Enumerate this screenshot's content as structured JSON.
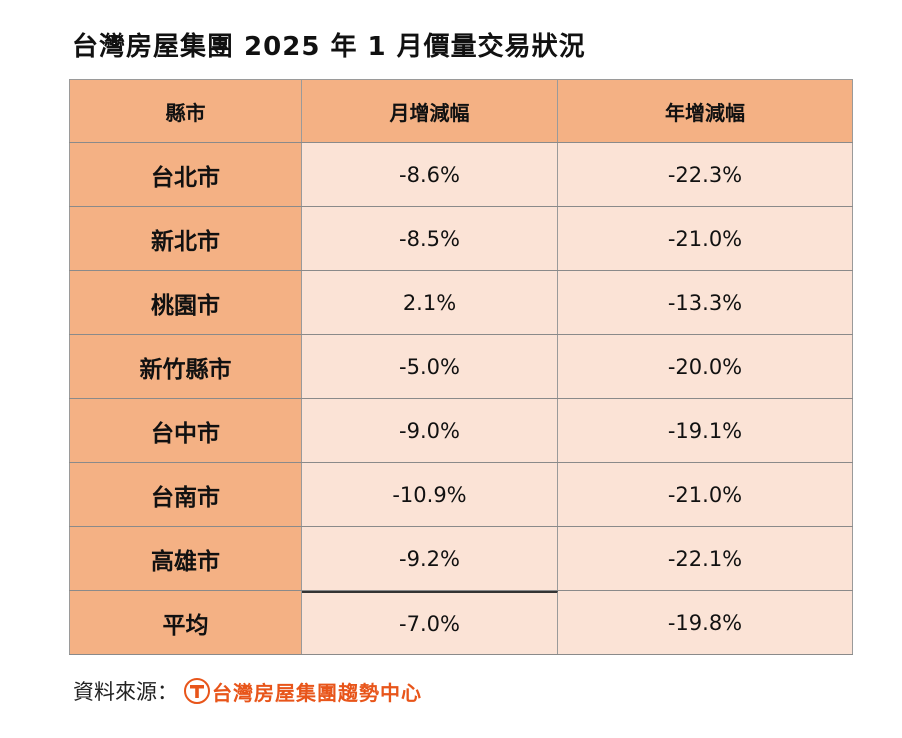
{
  "title": "台灣房屋集團 2025 年 1 月價量交易狀況",
  "table": {
    "headers": [
      "縣市",
      "月增減幅",
      "年增減幅"
    ],
    "rows": [
      {
        "city": "台北市",
        "mom": "-8.6%",
        "yoy": "-22.3%"
      },
      {
        "city": "新北市",
        "mom": "-8.5%",
        "yoy": "-21.0%"
      },
      {
        "city": "桃園市",
        "mom": "2.1%",
        "yoy": "-13.3%"
      },
      {
        "city": "新竹縣市",
        "mom": "-5.0%",
        "yoy": "-20.0%"
      },
      {
        "city": "台中市",
        "mom": "-9.0%",
        "yoy": "-19.1%"
      },
      {
        "city": "台南市",
        "mom": "-10.9%",
        "yoy": "-21.0%"
      },
      {
        "city": "高雄市",
        "mom": "-9.2%",
        "yoy": "-22.1%"
      },
      {
        "city": "平均",
        "mom": "-7.0%",
        "yoy": "-19.8%"
      }
    ]
  },
  "source": {
    "label": "資料來源：",
    "logo_text": "台灣房屋集團趨勢中心",
    "logo_icon": "taiwan-realty-logo-icon",
    "brand_color": "#e8551a"
  },
  "colors": {
    "header_bg": "#f4b184",
    "value_bg": "#fbe3d6"
  }
}
